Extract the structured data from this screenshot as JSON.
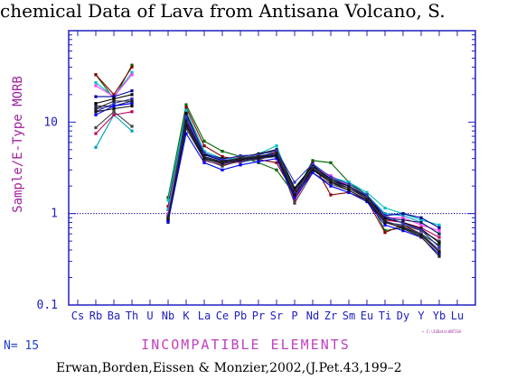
{
  "header": {
    "title": "chemical Data of Lava from  Antisana Volcano, S."
  },
  "footer": {
    "count": "N= 15",
    "citation": "Erwan,Borden,Eissen  &  Monzier,2002,(J.Pet.43,199–2",
    "file_tag": "← C:\\IGData\\ANTISA"
  },
  "colors": {
    "axis": "#2020c0",
    "reference_line": "#1c1cb0",
    "ylabel": "#a020a0",
    "xlabel": "#c040c0",
    "count": "#2040d0"
  },
  "chart_data": {
    "type": "line",
    "title": "chemical Data of Lava from  Antisana Volcano, S.",
    "ylabel": "Sample/E-Type MORB",
    "xlabel": "INCOMPATIBLE ELEMENTS",
    "y_scale": "log",
    "ylim": [
      0.1,
      100
    ],
    "y_ticks": [
      0.1,
      1,
      10
    ],
    "y_tick_labels": [
      "0.1",
      "1",
      "10"
    ],
    "reference_line": 1,
    "grid": false,
    "legend": "none",
    "categories": [
      "Cs",
      "Rb",
      "Ba",
      "Th",
      "U",
      "Nb",
      "K",
      "La",
      "Ce",
      "Pb",
      "Pr",
      "Sr",
      "P",
      "Nd",
      "Zr",
      "Sm",
      "Eu",
      "Ti",
      "Dy",
      "Y",
      "Yb",
      "Lu"
    ],
    "series": [
      {
        "color": "#006400",
        "values": [
          null,
          33,
          18,
          42,
          null,
          1.5,
          15.5,
          6.2,
          4.8,
          4.2,
          3.6,
          3.0,
          1.6,
          3.8,
          3.6,
          2.2,
          1.6,
          0.65,
          0.7,
          0.6,
          0.45,
          null
        ]
      },
      {
        "color": "#8b0000",
        "values": [
          null,
          33,
          20,
          40,
          null,
          1.2,
          14.5,
          5.5,
          4.2,
          3.8,
          3.9,
          3.6,
          1.6,
          3.6,
          1.6,
          1.7,
          1.4,
          0.62,
          0.75,
          0.6,
          0.38,
          null
        ]
      },
      {
        "color": "#00c0c0",
        "values": [
          null,
          27,
          19,
          35,
          null,
          1.4,
          13.5,
          4.8,
          4.0,
          4.0,
          4.5,
          5.5,
          1.7,
          3.4,
          2.5,
          2.2,
          1.7,
          1.15,
          1.0,
          0.85,
          0.75,
          null
        ]
      },
      {
        "color": "#00a0c0",
        "values": [
          null,
          5.3,
          12,
          8,
          null,
          1.1,
          12.0,
          4.5,
          3.8,
          3.6,
          4.0,
          5.0,
          1.5,
          3.0,
          2.4,
          2.1,
          1.6,
          1.0,
          0.95,
          0.8,
          0.6,
          null
        ]
      },
      {
        "color": "#ff40ff",
        "values": [
          null,
          25,
          19,
          33,
          null,
          1.0,
          11.0,
          4.2,
          3.6,
          3.9,
          4.1,
          4.6,
          1.5,
          3.2,
          2.6,
          2.0,
          1.5,
          0.9,
          0.9,
          0.75,
          0.65,
          null
        ]
      },
      {
        "color": "#c00060",
        "values": [
          null,
          7.5,
          12,
          13,
          null,
          0.95,
          9.5,
          3.8,
          3.4,
          3.7,
          4.0,
          4.8,
          1.4,
          3.0,
          2.2,
          1.9,
          1.5,
          0.85,
          0.8,
          0.7,
          0.55,
          null
        ]
      },
      {
        "color": "#404040",
        "values": [
          null,
          8.7,
          13,
          9,
          null,
          0.9,
          8.5,
          3.9,
          3.3,
          3.8,
          3.9,
          4.4,
          1.3,
          2.8,
          2.1,
          1.8,
          1.4,
          0.8,
          0.75,
          0.65,
          0.5,
          null
        ]
      },
      {
        "color": "#0000a0",
        "values": [
          null,
          19,
          19,
          22,
          null,
          0.85,
          10.5,
          4.4,
          3.8,
          4.0,
          4.2,
          4.4,
          1.8,
          3.4,
          2.3,
          2.0,
          1.5,
          0.95,
          1.0,
          0.9,
          0.7,
          null
        ]
      },
      {
        "color": "#202060",
        "values": [
          null,
          15,
          15,
          17,
          null,
          0.8,
          9.0,
          4.0,
          3.5,
          3.8,
          4.0,
          4.2,
          1.6,
          3.1,
          2.2,
          1.9,
          1.45,
          0.9,
          0.85,
          0.8,
          0.6,
          null
        ]
      },
      {
        "color": "#000000",
        "values": [
          null,
          16,
          18,
          20,
          null,
          0.85,
          12.5,
          4.5,
          4.0,
          4.2,
          4.5,
          5.0,
          1.9,
          3.3,
          2.4,
          2.0,
          1.55,
          0.88,
          0.8,
          0.68,
          0.48,
          null
        ]
      },
      {
        "color": "#3030c0",
        "values": [
          null,
          13,
          16,
          18,
          null,
          0.9,
          11.5,
          4.6,
          3.9,
          4.3,
          4.4,
          4.9,
          2.2,
          3.5,
          2.5,
          2.1,
          1.6,
          0.95,
          0.78,
          0.66,
          0.43,
          null
        ]
      },
      {
        "color": "#404080",
        "values": [
          null,
          14,
          15,
          16,
          null,
          0.95,
          9.8,
          4.1,
          3.7,
          4.1,
          4.3,
          4.5,
          1.7,
          3.2,
          2.3,
          1.9,
          1.5,
          0.83,
          0.72,
          0.6,
          0.4,
          null
        ]
      },
      {
        "color": "#0000ff",
        "values": [
          null,
          12,
          15,
          16,
          null,
          0.82,
          7.5,
          3.6,
          3.0,
          3.4,
          3.7,
          4.0,
          1.5,
          2.8,
          2.0,
          1.7,
          1.35,
          0.75,
          0.65,
          0.55,
          0.36,
          null
        ]
      },
      {
        "color": "#101010",
        "values": [
          null,
          13,
          14,
          15,
          null,
          0.88,
          9.2,
          4.0,
          3.6,
          3.9,
          4.1,
          4.3,
          1.6,
          3.0,
          2.2,
          1.8,
          1.4,
          0.8,
          0.7,
          0.58,
          0.38,
          null
        ]
      },
      {
        "color": "#202020",
        "values": [
          null,
          14,
          17,
          17,
          null,
          0.9,
          10.0,
          4.2,
          3.7,
          4.0,
          4.2,
          4.6,
          1.8,
          3.1,
          2.3,
          1.9,
          1.45,
          0.82,
          0.68,
          0.56,
          0.34,
          null
        ]
      }
    ]
  }
}
